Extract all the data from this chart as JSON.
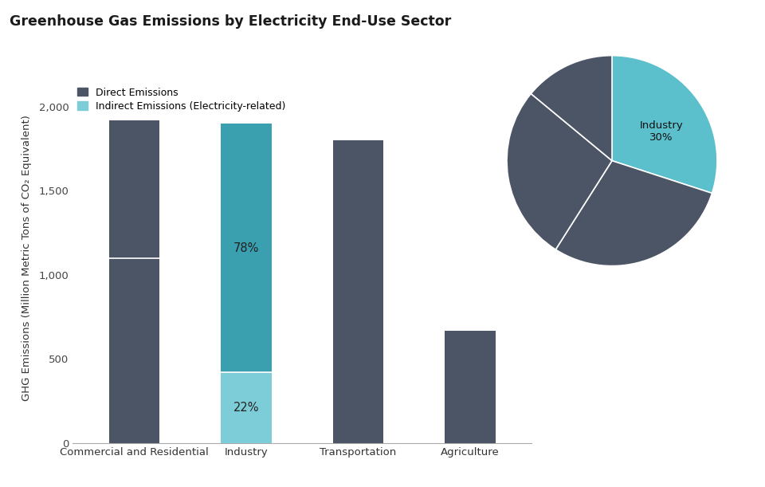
{
  "title": "Greenhouse Gas Emissions by Electricity End-Use Sector",
  "categories": [
    "Commercial and Residential",
    "Industry",
    "Transportation",
    "Agriculture"
  ],
  "direct_values": [
    1100,
    420,
    1800,
    30
  ],
  "indirect_values": [
    820,
    1480,
    0,
    640
  ],
  "total_values": [
    1920,
    1900,
    1800,
    670
  ],
  "industry_direct_pct": "22%",
  "industry_indirect_pct": "78%",
  "ylabel": "GHG Emissions (Million Metric Tons of CO₂ Equivalent)",
  "ylim": [
    0,
    2200
  ],
  "yticks": [
    0,
    500,
    1000,
    1500,
    2000
  ],
  "dark_bar_color": "#4c5566",
  "teal_dark_color": "#3a9fae",
  "teal_light_color": "#7dcdd8",
  "background_color": "#ffffff",
  "legend_direct_label": "Direct Emissions",
  "legend_indirect_label": "Indirect Emissions (Electricity-related)",
  "pie_slices": [
    30,
    29,
    27,
    14
  ],
  "pie_colors": [
    "#5bbfcc",
    "#4c5566",
    "#4c5566",
    "#4c5566"
  ],
  "wedge_linecolor": "#ffffff",
  "bar_width": 0.45
}
